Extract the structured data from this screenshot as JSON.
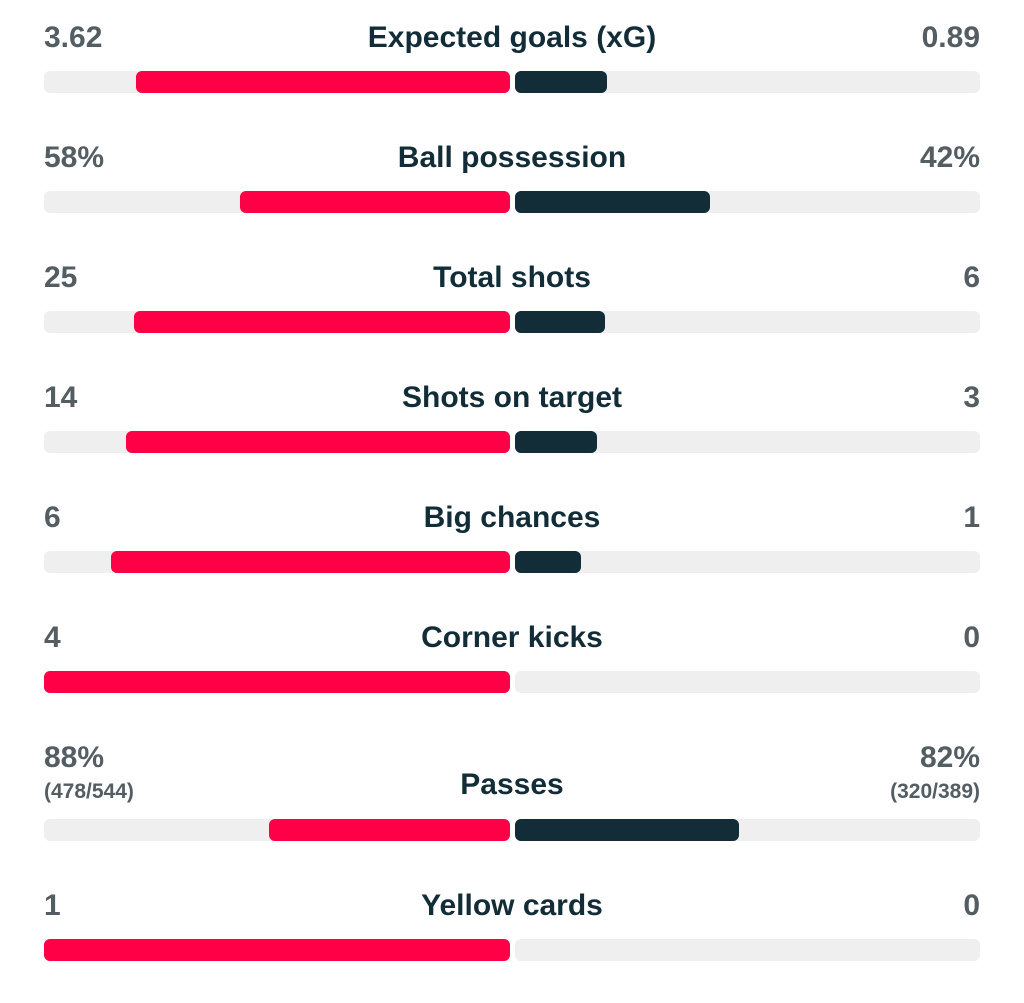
{
  "colors": {
    "home": "#ff0046",
    "away": "#122d37",
    "track": "#efefef",
    "value_text": "#535d62",
    "title_text": "#122d37"
  },
  "stats": [
    {
      "title": "Expected goals (xG)",
      "home": "3.62",
      "away": "0.89",
      "home_fill": 0.803,
      "away_fill": 0.197
    },
    {
      "title": "Ball possession",
      "home": "58%",
      "away": "42%",
      "home_fill": 0.58,
      "away_fill": 0.42
    },
    {
      "title": "Total shots",
      "home": "25",
      "away": "6",
      "home_fill": 0.806,
      "away_fill": 0.194
    },
    {
      "title": "Shots on target",
      "home": "14",
      "away": "3",
      "home_fill": 0.824,
      "away_fill": 0.176
    },
    {
      "title": "Big chances",
      "home": "6",
      "away": "1",
      "home_fill": 0.857,
      "away_fill": 0.143
    },
    {
      "title": "Corner kicks",
      "home": "4",
      "away": "0",
      "home_fill": 1.0,
      "away_fill": 0.0
    },
    {
      "title": "Passes",
      "home": "88%",
      "away": "82%",
      "home_sub": "(478/544)",
      "away_sub": "(320/389)",
      "home_fill": 0.518,
      "away_fill": 0.482
    },
    {
      "title": "Yellow cards",
      "home": "1",
      "away": "0",
      "home_fill": 1.0,
      "away_fill": 0.0
    }
  ]
}
